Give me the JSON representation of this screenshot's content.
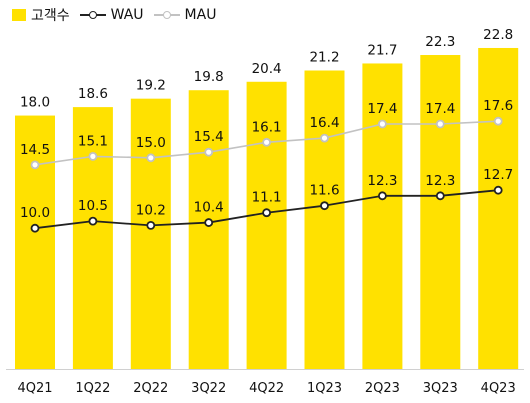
{
  "chart_data": {
    "type": "bar",
    "categories": [
      "4Q21",
      "1Q22",
      "2Q22",
      "3Q22",
      "4Q22",
      "1Q23",
      "2Q23",
      "3Q23",
      "4Q23"
    ],
    "series": [
      {
        "name": "고객수",
        "type": "bar",
        "color": "#ffe100",
        "values": [
          18.0,
          18.6,
          19.2,
          19.8,
          20.4,
          21.2,
          21.7,
          22.3,
          22.8
        ]
      },
      {
        "name": "WAU",
        "type": "line",
        "color": "#222222",
        "values": [
          10.0,
          10.5,
          10.2,
          10.4,
          11.1,
          11.6,
          12.3,
          12.3,
          12.7
        ]
      },
      {
        "name": "MAU",
        "type": "line",
        "color": "#c2c2c2",
        "values": [
          14.5,
          15.1,
          15.0,
          15.4,
          16.1,
          16.4,
          17.4,
          17.4,
          17.6
        ]
      }
    ],
    "ylim": [
      0,
      25
    ],
    "grid": false,
    "legend": "top-left"
  }
}
